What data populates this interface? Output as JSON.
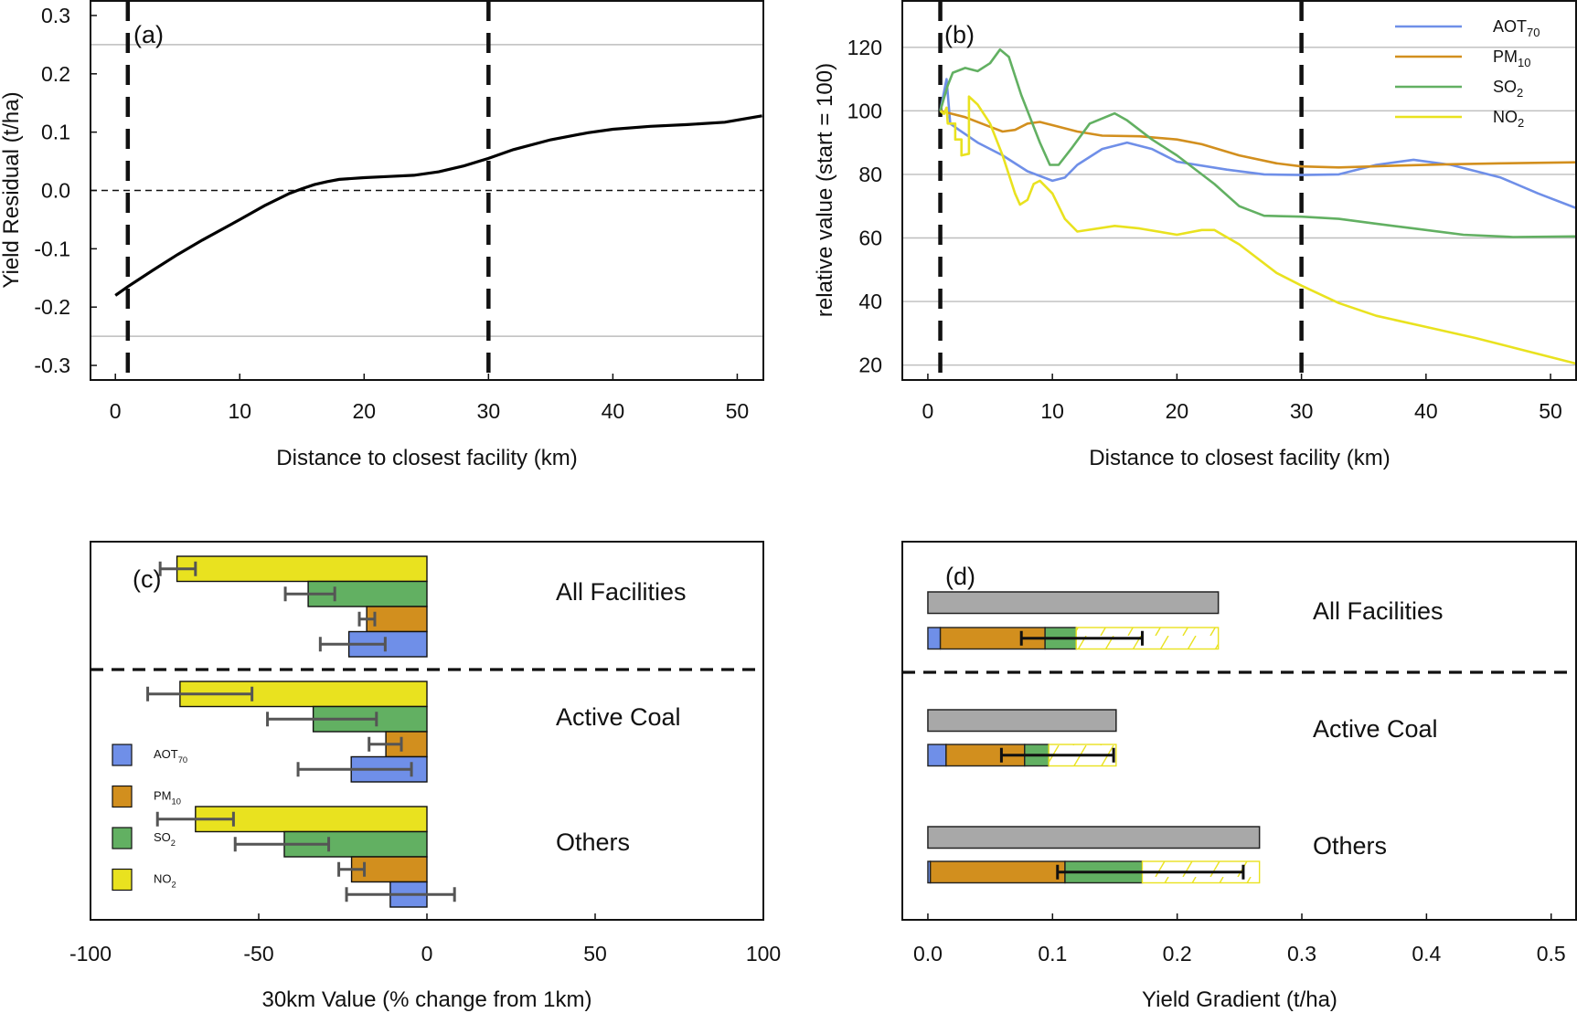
{
  "colors": {
    "AOT70": "#6f8fe8",
    "PM10": "#d28f1e",
    "SO2": "#62b062",
    "NO2": "#e9e21f",
    "gray_bar": "#a8a8a8",
    "errorbar_c": "#555555",
    "errorbar_d": "#111111",
    "gridline": "#bdbdbd"
  },
  "chart_data": [
    {
      "panel": "a",
      "type": "line",
      "panel_label": "(a)",
      "xlabel": "Distance to closest facility (km)",
      "ylabel": "Yield Residual (t/ha)",
      "xlim": [
        -2,
        52.1
      ],
      "ylim": [
        -0.325,
        0.325
      ],
      "xticks": [
        0,
        10,
        20,
        30,
        40,
        50
      ],
      "yticks": [
        0.3,
        0.2,
        0.1,
        0.0,
        -0.1,
        -0.2,
        -0.3
      ],
      "ytick_labels": [
        "0.3",
        "0.2",
        "0.1",
        "0.0",
        "-0.1",
        "-0.2",
        "-0.3"
      ],
      "gridlines_y": [
        0.25,
        -0.25
      ],
      "zero_line": 0.0,
      "vertical_markers_km": [
        1,
        30
      ],
      "series": [
        {
          "name": "Yield Residual",
          "color": "#000000",
          "x": [
            0,
            1,
            3,
            5,
            7,
            10,
            12,
            14,
            15,
            16,
            17,
            18,
            20,
            22,
            24,
            26,
            28,
            30,
            32,
            35,
            38,
            40,
            43,
            46,
            49,
            52
          ],
          "y": [
            -0.18,
            -0.165,
            -0.137,
            -0.11,
            -0.085,
            -0.05,
            -0.026,
            -0.005,
            0.003,
            0.01,
            0.015,
            0.019,
            0.022,
            0.024,
            0.026,
            0.032,
            0.042,
            0.055,
            0.07,
            0.087,
            0.099,
            0.105,
            0.11,
            0.113,
            0.117,
            0.128
          ]
        }
      ]
    },
    {
      "panel": "b",
      "type": "line",
      "panel_label": "(b)",
      "xlabel": "Distance to closest facility (km)",
      "ylabel": "relative value (start = 100)",
      "xlim": [
        -2.05,
        52.05
      ],
      "ylim": [
        15.3,
        134.6
      ],
      "xticks": [
        0,
        10,
        20,
        30,
        40,
        50
      ],
      "yticks": [
        120,
        100,
        80,
        60,
        40,
        20
      ],
      "gridlines_y": [
        120,
        100,
        80,
        60,
        40,
        20
      ],
      "vertical_markers_km": [
        1,
        30
      ],
      "legend_position": "top-right",
      "series": [
        {
          "name": "AOT70",
          "label_main": "AOT",
          "label_sub": "70",
          "x": [
            1,
            1.2,
            1.5,
            1.8,
            2.5,
            4,
            6,
            8,
            10,
            11,
            12,
            14,
            16,
            18,
            20,
            24,
            27,
            30,
            33,
            36,
            39,
            42,
            46,
            49,
            52
          ],
          "y": [
            100,
            104,
            110,
            96,
            94,
            90,
            86,
            81,
            78,
            79,
            83,
            88,
            90,
            88,
            84,
            81.5,
            80,
            79.8,
            80,
            83,
            84.6,
            83,
            79,
            74,
            69.5
          ]
        },
        {
          "name": "PM10",
          "label_main": "PM",
          "label_sub": "10",
          "x": [
            1,
            3,
            5,
            6,
            7,
            8,
            9,
            10,
            12,
            14,
            17,
            20,
            22,
            25,
            28,
            30,
            33,
            38,
            42,
            46,
            52
          ],
          "y": [
            100,
            98,
            95,
            93.5,
            94,
            96,
            96.5,
            95.5,
            93.5,
            92.2,
            92,
            91,
            89.5,
            86,
            83.5,
            82.5,
            82.2,
            82.8,
            83.2,
            83.5,
            83.8
          ]
        },
        {
          "name": "SO2",
          "label_main": "SO",
          "label_sub": "2",
          "x": [
            1,
            1.6,
            2,
            3,
            4,
            5,
            5.8,
            6.5,
            7.5,
            9,
            9.8,
            10.5,
            11.5,
            13,
            15,
            16,
            18,
            20,
            23,
            25,
            27,
            30,
            33,
            36,
            39,
            43,
            47,
            52
          ],
          "y": [
            100,
            108,
            112,
            113.5,
            112.5,
            115,
            119.3,
            117,
            105,
            90,
            83,
            83,
            88,
            96,
            99.2,
            97,
            91,
            86,
            77,
            70,
            67,
            66.7,
            66,
            64.5,
            63,
            61,
            60.3,
            60.5
          ]
        },
        {
          "name": "NO2",
          "label_main": "NO",
          "label_sub": "2",
          "x": [
            1,
            1.3,
            1.5,
            1.6,
            2.2,
            2.2,
            2.7,
            2.7,
            3.3,
            3.3,
            4,
            5,
            6,
            7,
            7.4,
            8,
            8.5,
            9,
            10,
            11,
            12,
            15,
            17,
            20,
            22,
            23,
            25,
            28,
            30,
            33,
            36,
            40,
            44,
            48,
            52
          ],
          "y": [
            100,
            99,
            101,
            96,
            96,
            91,
            91,
            86,
            86.5,
            104.5,
            102,
            96,
            86,
            74,
            70.5,
            72,
            77,
            78,
            74,
            66,
            62,
            63.8,
            63,
            61,
            62.5,
            62.5,
            58,
            49,
            45,
            39.5,
            35.5,
            32,
            28.5,
            24.5,
            20.5
          ]
        }
      ]
    },
    {
      "panel": "c",
      "type": "bar",
      "orientation": "horizontal",
      "panel_label": "(c)",
      "xlabel": "30km Value (% change from 1km)",
      "xlim": [
        -100,
        100
      ],
      "xticks": [
        -100,
        -50,
        0,
        50,
        100
      ],
      "legend_position": "left-middle",
      "legend": [
        {
          "key": "AOT70",
          "main": "AOT",
          "sub": "70"
        },
        {
          "key": "PM10",
          "main": "PM",
          "sub": "10"
        },
        {
          "key": "SO2",
          "main": "SO",
          "sub": "2"
        },
        {
          "key": "NO2",
          "main": "NO",
          "sub": "2"
        }
      ],
      "groups": [
        {
          "name": "All Facilities",
          "bars": [
            {
              "key": "NO2",
              "value": -74.3,
              "err": [
                -79.3,
                -68.8
              ]
            },
            {
              "key": "SO2",
              "value": -35.3,
              "err": [
                -42.1,
                -27.4
              ]
            },
            {
              "key": "PM10",
              "value": -17.9,
              "err": [
                -20.1,
                -15.5
              ]
            },
            {
              "key": "AOT70",
              "value": -23.2,
              "err": [
                -31.7,
                -12.4
              ]
            }
          ]
        },
        {
          "name": "Active Coal",
          "bars": [
            {
              "key": "NO2",
              "value": -73.4,
              "err": [
                -83.0,
                -52.0
              ]
            },
            {
              "key": "SO2",
              "value": -33.8,
              "err": [
                -47.4,
                -15.0
              ]
            },
            {
              "key": "PM10",
              "value": -12.2,
              "err": [
                -17.2,
                -7.6
              ]
            },
            {
              "key": "AOT70",
              "value": -22.5,
              "err": [
                -38.3,
                -4.6
              ]
            }
          ]
        },
        {
          "name": "Others",
          "bars": [
            {
              "key": "NO2",
              "value": -68.8,
              "err": [
                -80.1,
                -57.5
              ]
            },
            {
              "key": "SO2",
              "value": -42.4,
              "err": [
                -57.0,
                -29.2
              ]
            },
            {
              "key": "PM10",
              "value": -22.4,
              "err": [
                -26.2,
                -18.6
              ]
            },
            {
              "key": "AOT70",
              "value": -10.9,
              "err": [
                -23.9,
                8.2
              ]
            }
          ]
        }
      ]
    },
    {
      "panel": "d",
      "type": "bar",
      "orientation": "horizontal-stacked",
      "panel_label": "(d)",
      "xlabel": "Yield Gradient (t/ha)",
      "xlim": [
        -0.0205,
        0.52
      ],
      "xticks": [
        0.0,
        0.1,
        0.2,
        0.3,
        0.4,
        0.5
      ],
      "xtick_labels": [
        "0.0",
        "0.1",
        "0.2",
        "0.3",
        "0.4",
        "0.5"
      ],
      "groups": [
        {
          "name": "All Facilities",
          "total": 0.233,
          "segments": [
            {
              "key": "AOT70",
              "value": 0.01
            },
            {
              "key": "PM10",
              "value": 0.084
            },
            {
              "key": "SO2",
              "value": 0.025
            },
            {
              "key": "NO2",
              "value": 0.114,
              "hatched": true
            }
          ],
          "err": [
            0.075,
            0.172
          ]
        },
        {
          "name": "Active Coal",
          "total": 0.151,
          "segments": [
            {
              "key": "AOT70",
              "value": 0.0146
            },
            {
              "key": "PM10",
              "value": 0.063
            },
            {
              "key": "SO2",
              "value": 0.0194
            },
            {
              "key": "NO2",
              "value": 0.054,
              "hatched": true
            }
          ],
          "err": [
            0.059,
            0.149
          ]
        },
        {
          "name": "Others",
          "total": 0.266,
          "segments": [
            {
              "key": "AOT70",
              "value": 0.002
            },
            {
              "key": "PM10",
              "value": 0.108
            },
            {
              "key": "SO2",
              "value": 0.062
            },
            {
              "key": "NO2",
              "value": 0.094,
              "hatched": true
            }
          ],
          "err": [
            0.104,
            0.253
          ]
        }
      ]
    }
  ]
}
